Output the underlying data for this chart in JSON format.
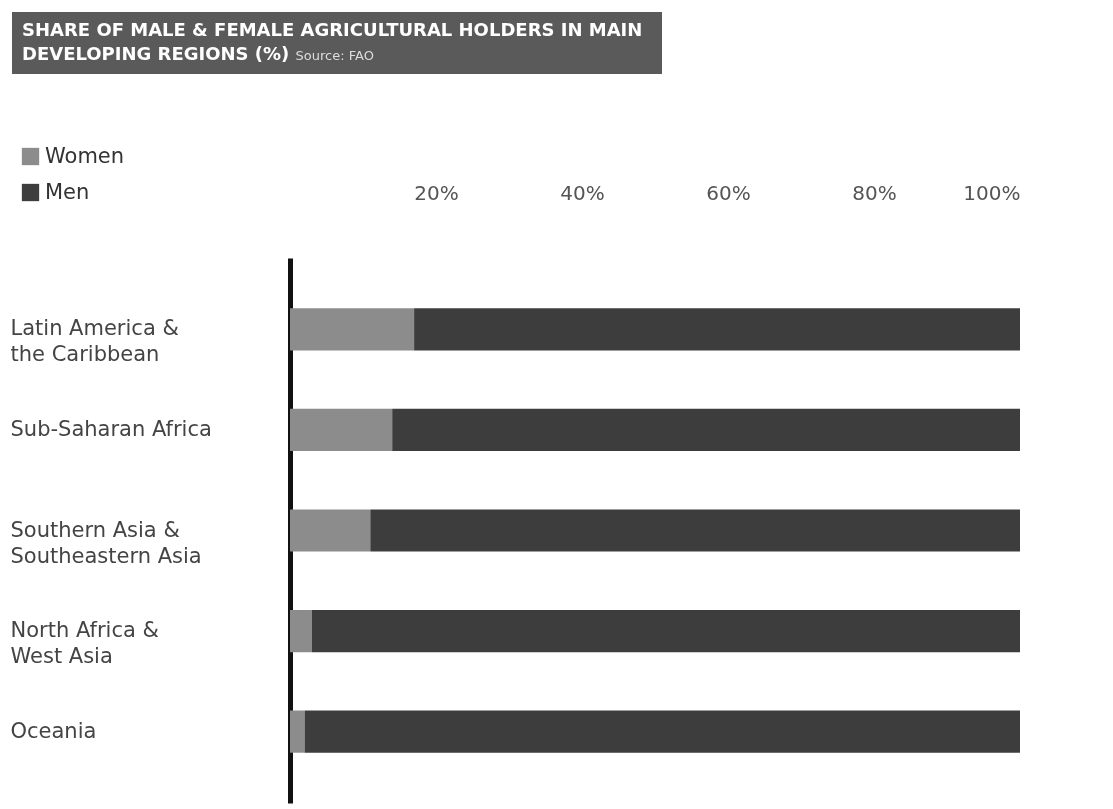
{
  "chart_data": {
    "type": "bar",
    "orientation": "horizontal",
    "stacked": true,
    "title": "SHARE OF MALE & FEMALE AGRICULTURAL HOLDERS IN MAIN DEVELOPING REGIONS (%)",
    "annotations": [
      "Source: FAO"
    ],
    "categories": [
      "Latin America & the Caribbean",
      "Sub-Saharan Africa",
      "Southern Asia & Southeastern Asia",
      "North Africa & West Asia",
      "Oceania"
    ],
    "series": [
      {
        "name": "Women",
        "color": "#8c8c8c",
        "values": [
          17,
          14,
          11,
          3,
          2
        ]
      },
      {
        "name": "Men",
        "color": "#3d3d3d",
        "values": [
          83,
          86,
          89,
          97,
          98
        ]
      }
    ],
    "xlim": [
      0,
      100
    ],
    "xticks": [
      {
        "value": 20,
        "label": "20%"
      },
      {
        "value": 40,
        "label": "40%"
      },
      {
        "value": 60,
        "label": "60%"
      },
      {
        "value": 80,
        "label": "80%"
      },
      {
        "value": 100,
        "label": "100%"
      }
    ],
    "legend": "top left",
    "grid": false
  }
}
